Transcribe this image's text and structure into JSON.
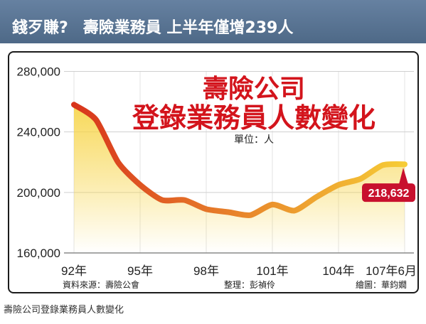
{
  "banner": {
    "lead": "錢歹賺?",
    "headline": "壽險業務員 上半年僅增239人"
  },
  "chart_data": {
    "type": "area",
    "title_lines": [
      "壽險公司",
      "登錄業務員人數變化"
    ],
    "unit": "單位：人",
    "x": [
      92,
      93,
      94,
      95,
      96,
      97,
      98,
      99,
      100,
      101,
      102,
      103,
      104,
      105,
      106,
      107
    ],
    "values": [
      258000,
      248000,
      220000,
      205000,
      195000,
      195000,
      189000,
      187000,
      185000,
      192000,
      188000,
      197000,
      205000,
      209000,
      218000,
      218632
    ],
    "xlim": [
      92,
      107
    ],
    "x_ticks": [
      {
        "x": 92,
        "label": "92年"
      },
      {
        "x": 95,
        "label": "95年"
      },
      {
        "x": 98,
        "label": "98年"
      },
      {
        "x": 101,
        "label": "101年"
      },
      {
        "x": 104,
        "label": "104年"
      },
      {
        "x": 107,
        "label": "107年6月"
      }
    ],
    "ylim": [
      160000,
      280000
    ],
    "y_ticks": [
      {
        "y": 280000,
        "label": "280,000"
      },
      {
        "y": 240000,
        "label": "240,000"
      },
      {
        "y": 200000,
        "label": "200,000"
      },
      {
        "y": 160000,
        "label": "160,000"
      }
    ],
    "grid": true,
    "data_labels": [
      {
        "x": 107,
        "value": 218632,
        "text": "218,632"
      }
    ],
    "colors": {
      "title": "#d3141c",
      "line_gradient": [
        "#d8341c",
        "#e8852b",
        "#f6cc36"
      ],
      "area_fill": "#f7d54a",
      "label_bg": "#c8102e",
      "label_text": "#ffffff"
    }
  },
  "credits": {
    "source": "資料來源：壽險公會",
    "editor": "整理：彭禎伶",
    "illustrator": "繪圖：華鈞嫺"
  },
  "caption": "壽險公司登錄業務員人數變化"
}
